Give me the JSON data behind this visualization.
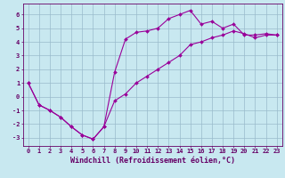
{
  "line1_x": [
    0,
    1,
    2,
    3,
    4,
    5,
    6,
    7,
    8,
    9,
    10,
    11,
    12,
    13,
    14,
    15,
    16,
    17,
    18,
    19,
    20,
    21,
    22,
    23
  ],
  "line1_y": [
    1.0,
    -0.6,
    -1.0,
    -1.5,
    -2.2,
    -2.8,
    -3.1,
    -2.2,
    1.8,
    4.2,
    4.7,
    4.8,
    5.0,
    5.7,
    6.0,
    6.3,
    5.3,
    5.5,
    5.0,
    5.3,
    4.5,
    4.5,
    4.6,
    4.5
  ],
  "line2_x": [
    0,
    1,
    2,
    3,
    4,
    5,
    6,
    7,
    8,
    9,
    10,
    11,
    12,
    13,
    14,
    15,
    16,
    17,
    18,
    19,
    20,
    21,
    22,
    23
  ],
  "line2_y": [
    1.0,
    -0.6,
    -1.0,
    -1.5,
    -2.2,
    -2.8,
    -3.1,
    -2.2,
    -0.3,
    0.2,
    1.0,
    1.5,
    2.0,
    2.5,
    3.0,
    3.8,
    4.0,
    4.3,
    4.5,
    4.8,
    4.6,
    4.3,
    4.5,
    4.5
  ],
  "line_color": "#990099",
  "bg_color": "#c8e8f0",
  "grid_color": "#99bbcc",
  "axis_color": "#660066",
  "text_color": "#660066",
  "xlabel": "Windchill (Refroidissement éolien,°C)",
  "xlim_left": -0.5,
  "xlim_right": 23.5,
  "ylim_bottom": -3.6,
  "ylim_top": 6.8,
  "yticks": [
    -3,
    -2,
    -1,
    0,
    1,
    2,
    3,
    4,
    5,
    6
  ],
  "xticks": [
    0,
    1,
    2,
    3,
    4,
    5,
    6,
    7,
    8,
    9,
    10,
    11,
    12,
    13,
    14,
    15,
    16,
    17,
    18,
    19,
    20,
    21,
    22,
    23
  ],
  "tick_fontsize": 5.0,
  "xlabel_fontsize": 6.0,
  "marker": "D",
  "marker_size": 2.0,
  "linewidth": 0.8
}
